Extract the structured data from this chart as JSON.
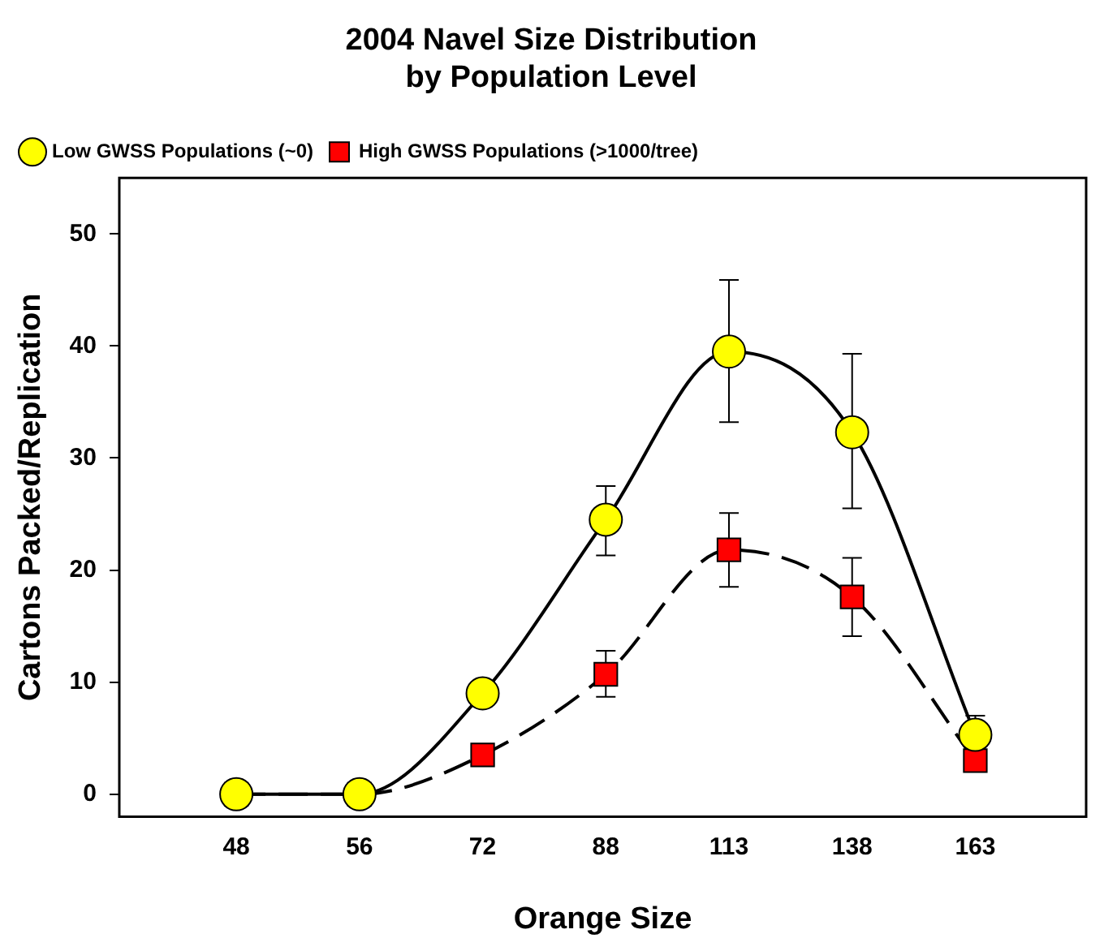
{
  "chart_data": {
    "type": "line",
    "title": "2004 Navel Size Distribution\nby Population Level",
    "xlabel": "Orange Size",
    "ylabel": "Cartons Packed/Replication",
    "categories": [
      "48",
      "56",
      "72",
      "88",
      "113",
      "138",
      "163"
    ],
    "series": [
      {
        "name": "Low GWSS Populations (~0)",
        "color": "#ffff00",
        "marker": "circle",
        "line_style": "solid",
        "values": [
          0,
          0,
          9.0,
          24.5,
          39.5,
          32.3,
          5.3
        ],
        "errors": [
          null,
          null,
          null,
          [
            21.3,
            27.5
          ],
          [
            33.2,
            45.9
          ],
          [
            25.5,
            39.3
          ],
          [
            4.0,
            7.0
          ]
        ]
      },
      {
        "name": "High GWSS Populations (>1000/tree)",
        "color": "#ff0000",
        "marker": "square",
        "line_style": "dashed",
        "values": [
          0,
          0,
          3.5,
          10.7,
          21.8,
          17.6,
          3.0
        ],
        "errors": [
          null,
          null,
          null,
          [
            8.7,
            12.8
          ],
          [
            18.5,
            25.1
          ],
          [
            14.1,
            21.1
          ],
          null
        ]
      }
    ],
    "ylim": [
      -2,
      55
    ],
    "yticks": [
      0,
      10,
      20,
      30,
      40,
      50
    ],
    "grid": false,
    "legend": "top left"
  }
}
